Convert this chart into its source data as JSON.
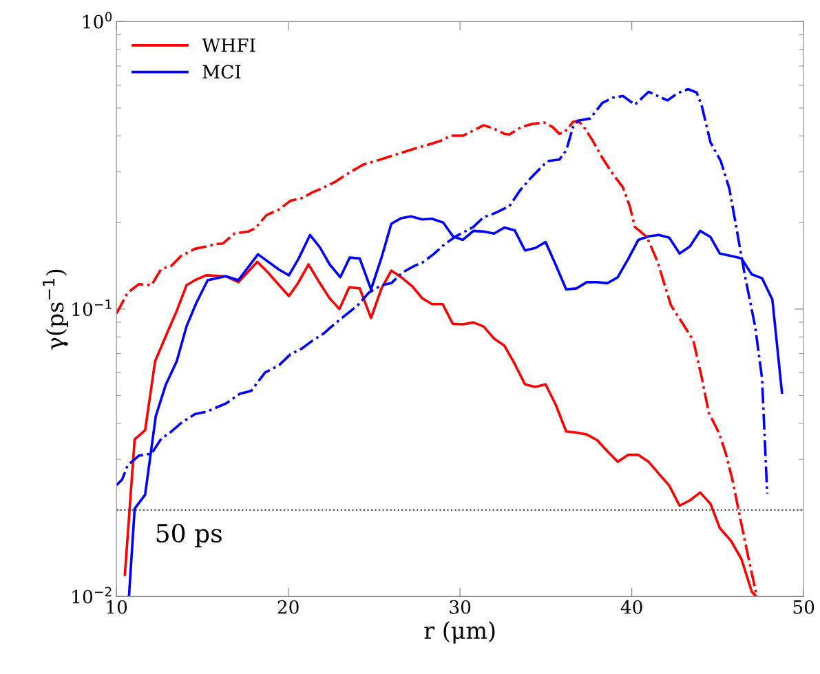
{
  "chart_data": {
    "type": "line",
    "xlabel": "r (μm)",
    "ylabel": "γ(ps$^{−1}$)",
    "log": "y",
    "grid": false,
    "legend": "top left",
    "xlim": [
      10,
      50
    ],
    "xticks": [
      10,
      20,
      30,
      40,
      50
    ],
    "ylim": [
      0.01,
      1
    ],
    "yticks": [
      {
        "value": 0.01,
        "label": "10$^{−2}$"
      },
      {
        "value": 0.1,
        "label": "10$^{−1}$"
      },
      {
        "value": 1,
        "label": "10$^{0}$"
      }
    ],
    "ref_lines": [
      {
        "axis": "y",
        "value": 0.02,
        "label": "50 ps",
        "color": "#333333",
        "line_style": "dotted"
      }
    ],
    "series": [
      {
        "name": "WHFI",
        "color": "#ff0000",
        "line_style": "solid",
        "x": [
          10.49,
          11.06,
          11.67,
          12.25,
          12.94,
          13.51,
          14.08,
          14.57,
          15.22,
          16.37,
          17.1,
          18.2,
          18.82,
          19.47,
          20.04,
          20.53,
          21.18,
          21.84,
          22.41,
          22.98,
          23.55,
          24.16,
          24.82,
          25.43,
          26.0,
          26.65,
          27.22,
          27.8,
          28.37,
          28.99,
          29.58,
          30.18,
          30.78,
          31.38,
          31.98,
          32.58,
          33.18,
          33.78,
          34.38,
          34.98,
          35.58,
          36.18,
          36.78,
          37.38,
          37.98,
          38.58,
          39.18,
          39.78,
          40.38,
          40.98,
          41.58,
          42.18,
          42.78,
          43.38,
          43.98,
          44.58,
          45.12,
          45.78,
          46.38,
          46.98,
          47.24
        ],
        "values": [
          0.0119,
          0.0352,
          0.0379,
          0.0658,
          0.0823,
          0.0986,
          0.121,
          0.126,
          0.131,
          0.13,
          0.124,
          0.146,
          0.134,
          0.121,
          0.111,
          0.122,
          0.143,
          0.123,
          0.109,
          0.1,
          0.119,
          0.118,
          0.0931,
          0.118,
          0.136,
          0.128,
          0.12,
          0.109,
          0.104,
          0.104,
          0.0888,
          0.0885,
          0.0898,
          0.0869,
          0.0789,
          0.0746,
          0.0645,
          0.0547,
          0.0536,
          0.0547,
          0.0463,
          0.0375,
          0.0372,
          0.0366,
          0.035,
          0.032,
          0.0294,
          0.0311,
          0.0311,
          0.0294,
          0.0267,
          0.0243,
          0.0207,
          0.0216,
          0.023,
          0.021,
          0.0173,
          0.0156,
          0.0135,
          0.0104,
          0.01
        ]
      },
      {
        "name": "MCI",
        "color": "#0000ff",
        "line_style": "solid",
        "x": [
          10.73,
          11.06,
          11.67,
          12.29,
          12.86,
          13.51,
          14.08,
          14.65,
          15.31,
          16.37,
          17.1,
          18.24,
          19.47,
          20.04,
          20.61,
          21.27,
          21.84,
          22.41,
          23.03,
          23.58,
          24.16,
          24.82,
          25.43,
          26.0,
          26.57,
          27.14,
          27.8,
          28.37,
          29.02,
          29.59,
          30.16,
          30.78,
          31.38,
          31.98,
          32.58,
          33.18,
          33.78,
          34.38,
          34.98,
          35.58,
          36.18,
          36.78,
          37.38,
          37.98,
          38.58,
          39.18,
          39.78,
          40.38,
          40.98,
          41.58,
          42.18,
          42.78,
          43.38,
          43.98,
          44.58,
          45.12,
          45.78,
          46.38,
          46.98,
          47.58,
          48.18,
          48.74
        ],
        "values": [
          0.01,
          0.0202,
          0.0226,
          0.0424,
          0.0543,
          0.0658,
          0.0871,
          0.105,
          0.126,
          0.13,
          0.126,
          0.155,
          0.137,
          0.131,
          0.15,
          0.181,
          0.164,
          0.143,
          0.129,
          0.151,
          0.15,
          0.117,
          0.151,
          0.198,
          0.207,
          0.21,
          0.205,
          0.206,
          0.2,
          0.179,
          0.174,
          0.187,
          0.186,
          0.183,
          0.192,
          0.188,
          0.16,
          0.163,
          0.171,
          0.142,
          0.117,
          0.118,
          0.124,
          0.124,
          0.123,
          0.129,
          0.149,
          0.174,
          0.179,
          0.181,
          0.177,
          0.156,
          0.165,
          0.187,
          0.178,
          0.156,
          0.153,
          0.15,
          0.132,
          0.128,
          0.108,
          0.0512
        ]
      },
      {
        "color": "#ff0000",
        "line_style": "dashdot",
        "x": [
          10.0,
          10.65,
          11.31,
          12.04,
          12.61,
          13.18,
          13.76,
          14.57,
          15.22,
          15.71,
          16.2,
          16.86,
          17.67,
          18.08,
          18.73,
          19.47,
          20.12,
          20.78,
          21.43,
          22.08,
          22.73,
          23.39,
          24.04,
          24.37,
          25.28,
          26.28,
          27.28,
          28.08,
          28.88,
          29.48,
          30.18,
          30.78,
          31.38,
          31.98,
          32.58,
          32.88,
          33.58,
          34.18,
          34.88,
          35.38,
          35.78,
          36.08,
          36.58,
          36.88,
          37.28,
          37.78,
          38.28,
          38.88,
          39.48,
          39.88,
          40.18,
          40.88,
          41.48,
          42.28,
          42.88,
          43.58,
          44.08,
          44.48,
          45.08,
          45.48,
          45.88,
          46.28,
          46.78,
          47.28
        ],
        "values": [
          0.0964,
          0.114,
          0.122,
          0.121,
          0.138,
          0.141,
          0.153,
          0.162,
          0.165,
          0.168,
          0.169,
          0.183,
          0.186,
          0.191,
          0.212,
          0.222,
          0.238,
          0.243,
          0.255,
          0.265,
          0.277,
          0.294,
          0.31,
          0.318,
          0.33,
          0.345,
          0.36,
          0.372,
          0.385,
          0.401,
          0.401,
          0.418,
          0.436,
          0.424,
          0.407,
          0.405,
          0.43,
          0.44,
          0.446,
          0.43,
          0.407,
          0.412,
          0.448,
          0.452,
          0.424,
          0.38,
          0.336,
          0.296,
          0.265,
          0.228,
          0.193,
          0.178,
          0.147,
          0.103,
          0.0906,
          0.0778,
          0.0574,
          0.0436,
          0.037,
          0.0313,
          0.0251,
          0.0191,
          0.0137,
          0.01
        ]
      },
      {
        "color": "#0000ff",
        "line_style": "dashdot",
        "x": [
          10.0,
          10.33,
          10.65,
          11.31,
          12.04,
          12.61,
          13.18,
          13.76,
          14.57,
          15.22,
          15.88,
          16.37,
          17.18,
          17.84,
          18.65,
          19.47,
          20.12,
          20.78,
          21.43,
          22.08,
          22.73,
          23.55,
          24.04,
          24.69,
          25.43,
          26.0,
          26.65,
          27.31,
          27.8,
          28.45,
          29.1,
          29.76,
          30.78,
          31.38,
          31.98,
          32.88,
          33.48,
          34.08,
          34.68,
          35.08,
          35.78,
          36.18,
          36.58,
          36.88,
          37.58,
          38.28,
          38.88,
          39.48,
          40.18,
          40.98,
          41.58,
          42.08,
          42.68,
          43.28,
          43.78,
          44.08,
          44.58,
          45.18,
          45.68,
          46.08,
          46.58,
          47.18,
          47.58,
          47.88
        ],
        "values": [
          0.0244,
          0.0255,
          0.0286,
          0.0309,
          0.0314,
          0.0354,
          0.0374,
          0.0401,
          0.0431,
          0.0439,
          0.0456,
          0.0469,
          0.0507,
          0.0519,
          0.0601,
          0.0638,
          0.0695,
          0.0728,
          0.0778,
          0.0823,
          0.0891,
          0.0975,
          0.103,
          0.114,
          0.121,
          0.123,
          0.134,
          0.141,
          0.145,
          0.155,
          0.168,
          0.179,
          0.193,
          0.209,
          0.215,
          0.228,
          0.258,
          0.284,
          0.309,
          0.327,
          0.331,
          0.356,
          0.43,
          0.452,
          0.46,
          0.521,
          0.543,
          0.551,
          0.514,
          0.57,
          0.548,
          0.532,
          0.564,
          0.582,
          0.566,
          0.507,
          0.38,
          0.327,
          0.262,
          0.193,
          0.131,
          0.0869,
          0.0574,
          0.0228
        ]
      }
    ]
  }
}
